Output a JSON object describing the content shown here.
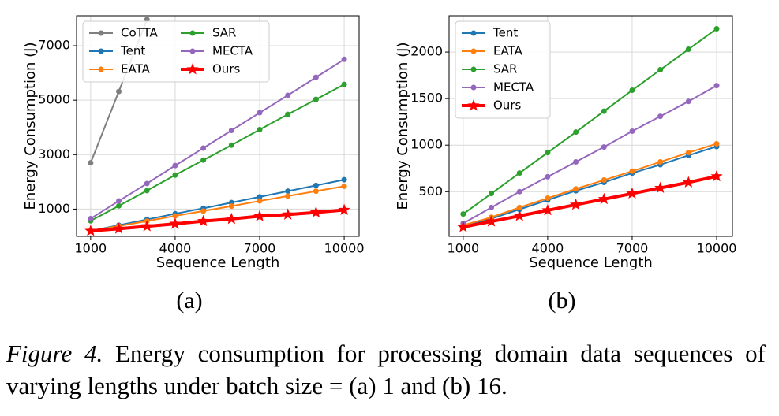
{
  "chart_data": [
    {
      "type": "line",
      "subcaption": "(a)",
      "xlabel": "Sequence Length",
      "ylabel": "Energy Consumption (J)",
      "x": [
        1000,
        2000,
        3000,
        4000,
        5000,
        6000,
        7000,
        8000,
        9000,
        10000
      ],
      "xlim": [
        500,
        10530
      ],
      "xticks": [
        1000,
        4000,
        7000,
        10000
      ],
      "ylim": [
        0,
        8100
      ],
      "yticks": [
        1000,
        3000,
        5000,
        7000
      ],
      "grid": true,
      "legend": "upper left",
      "legend_columns": 2,
      "series": [
        {
          "name": "CoTTA",
          "color": "#7f7f7f",
          "marker": "o",
          "values": [
            2700,
            5320,
            7960,
            null,
            null,
            null,
            null,
            null,
            null,
            null
          ]
        },
        {
          "name": "Tent",
          "color": "#1f77b4",
          "marker": "o",
          "values": [
            200,
            410,
            620,
            830,
            1030,
            1240,
            1450,
            1660,
            1870,
            2080
          ]
        },
        {
          "name": "EATA",
          "color": "#ff7f0e",
          "marker": "o",
          "values": [
            200,
            380,
            560,
            750,
            930,
            1110,
            1300,
            1480,
            1660,
            1840
          ]
        },
        {
          "name": "SAR",
          "color": "#2ca02c",
          "marker": "o",
          "values": [
            570,
            1120,
            1680,
            2250,
            2800,
            3350,
            3920,
            4480,
            5030,
            5580
          ]
        },
        {
          "name": "MECTA",
          "color": "#9467bd",
          "marker": "o",
          "values": [
            650,
            1300,
            1940,
            2600,
            3240,
            3890,
            4540,
            5180,
            5840,
            6500
          ]
        },
        {
          "name": "Ours",
          "color": "#ff0000",
          "marker": "*",
          "values": [
            200,
            280,
            370,
            460,
            560,
            640,
            740,
            800,
            880,
            970
          ]
        }
      ]
    },
    {
      "type": "line",
      "subcaption": "(b)",
      "xlabel": "Sequence Length",
      "ylabel": "Energy Consumption (J)",
      "x": [
        1000,
        2000,
        3000,
        4000,
        5000,
        6000,
        7000,
        8000,
        9000,
        10000
      ],
      "xlim": [
        500,
        10560
      ],
      "xticks": [
        1000,
        4000,
        7000,
        10000
      ],
      "ylim": [
        20,
        2390
      ],
      "yticks": [
        500,
        1000,
        1500,
        2000
      ],
      "grid": true,
      "legend": "upper left",
      "legend_columns": 1,
      "series": [
        {
          "name": "Tent",
          "color": "#1f77b4",
          "marker": "o",
          "values": [
            130,
            210,
            310,
            410,
            510,
            600,
            700,
            790,
            890,
            985
          ]
        },
        {
          "name": "EATA",
          "color": "#ff7f0e",
          "marker": "o",
          "values": [
            140,
            225,
            330,
            430,
            530,
            625,
            720,
            820,
            920,
            1015
          ]
        },
        {
          "name": "SAR",
          "color": "#2ca02c",
          "marker": "o",
          "values": [
            260,
            480,
            700,
            920,
            1140,
            1365,
            1590,
            1810,
            2030,
            2250
          ]
        },
        {
          "name": "MECTA",
          "color": "#9467bd",
          "marker": "o",
          "values": [
            160,
            330,
            500,
            660,
            820,
            980,
            1150,
            1310,
            1470,
            1640
          ]
        },
        {
          "name": "Ours",
          "color": "#ff0000",
          "marker": "*",
          "values": [
            120,
            180,
            240,
            300,
            360,
            420,
            480,
            540,
            600,
            665
          ]
        }
      ]
    }
  ],
  "caption": {
    "label": "Figure 4.",
    "text": "Energy consumption for processing domain data sequences of varying lengths under batch size = (a) 1 and (b) 16."
  }
}
